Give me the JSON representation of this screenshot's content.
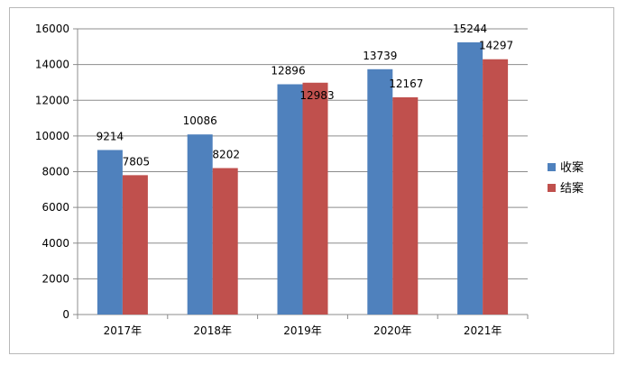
{
  "chart_data": {
    "type": "bar",
    "categories": [
      "2017年",
      "2018年",
      "2019年",
      "2020年",
      "2021年"
    ],
    "series": [
      {
        "name": "收案",
        "values": [
          9214,
          10086,
          12896,
          13739,
          15244
        ],
        "color": "#4F81BD"
      },
      {
        "name": "结案",
        "values": [
          7805,
          8202,
          12983,
          12167,
          14297
        ],
        "color": "#C0504D"
      }
    ],
    "ylim": [
      0,
      16000
    ],
    "yticks": [
      "0",
      "2000",
      "4000",
      "6000",
      "8000",
      "10000",
      "12000",
      "14000",
      "16000"
    ],
    "grid": true,
    "legend_position": "right"
  }
}
